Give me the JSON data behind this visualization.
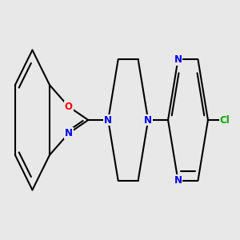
{
  "background_color": "#e8e8e8",
  "bond_color": "#000000",
  "bond_width": 1.5,
  "atom_colors": {
    "N": "#0000ee",
    "O": "#ff0000",
    "Cl": "#00aa00",
    "C": "#000000"
  },
  "font_size": 8.5,
  "fig_size": [
    3.0,
    3.0
  ]
}
